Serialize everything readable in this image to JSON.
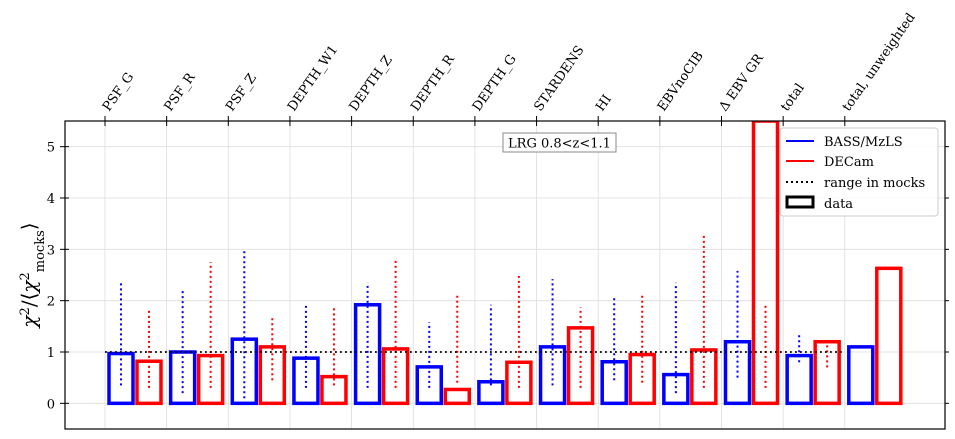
{
  "chart_data": {
    "type": "bar",
    "title": "",
    "xlabel": "",
    "ylabel": "χ²/⟨χ²mocks⟩",
    "ylim": [
      -0.5,
      5.5
    ],
    "yticks": [
      "0",
      "1",
      "2",
      "3",
      "4",
      "5"
    ],
    "categories": [
      "PSF_G",
      "PSF_R",
      "PSF_Z",
      "DEPTH_W1",
      "DEPTH_Z",
      "DEPTH_R",
      "DEPTH_G",
      "STARDENS",
      "HI",
      "EBVnoCIB",
      "Δ EBV GR",
      "total",
      "total, unweighted"
    ],
    "series": [
      {
        "name": "BASS/MzLS",
        "color": "#0000ff",
        "values": [
          0.97,
          1.0,
          1.25,
          0.88,
          1.92,
          0.71,
          0.42,
          1.1,
          0.81,
          0.56,
          1.2,
          0.93,
          1.1
        ],
        "mock_range": [
          [
            0.35,
            2.35
          ],
          [
            0.2,
            2.2
          ],
          [
            0.1,
            2.98
          ],
          [
            0.3,
            1.95
          ],
          [
            0.3,
            2.35
          ],
          [
            0.3,
            1.58
          ],
          [
            0.35,
            1.92
          ],
          [
            0.35,
            2.42
          ],
          [
            0.45,
            2.08
          ],
          [
            0.2,
            2.35
          ],
          [
            0.5,
            2.58
          ],
          [
            0.8,
            1.35
          ],
          null
        ]
      },
      {
        "name": "DECam",
        "color": "#ff0000",
        "values": [
          0.82,
          0.93,
          1.1,
          0.52,
          1.06,
          0.27,
          0.8,
          1.47,
          0.95,
          1.04,
          5.5,
          1.2,
          2.63
        ],
        "mock_range": [
          [
            0.3,
            1.82
          ],
          [
            0.3,
            2.75
          ],
          [
            0.45,
            1.68
          ],
          [
            0.35,
            1.85
          ],
          [
            0.3,
            2.83
          ],
          [
            0.4,
            2.15
          ],
          [
            0.3,
            2.48
          ],
          [
            0.3,
            1.87
          ],
          [
            0.4,
            2.12
          ],
          [
            0.3,
            3.27
          ],
          [
            0.3,
            1.94
          ],
          [
            0.7,
            1.28
          ],
          null
        ]
      }
    ],
    "reference_line": {
      "label": "range in mocks",
      "value": 1,
      "style": "dotted"
    },
    "legend": {
      "position": "top-right",
      "entries": [
        "BASS/MzLS",
        "DECam",
        "range in mocks",
        "data"
      ]
    },
    "annotation": "LRG 0.8<z<1.1",
    "grid": true
  }
}
